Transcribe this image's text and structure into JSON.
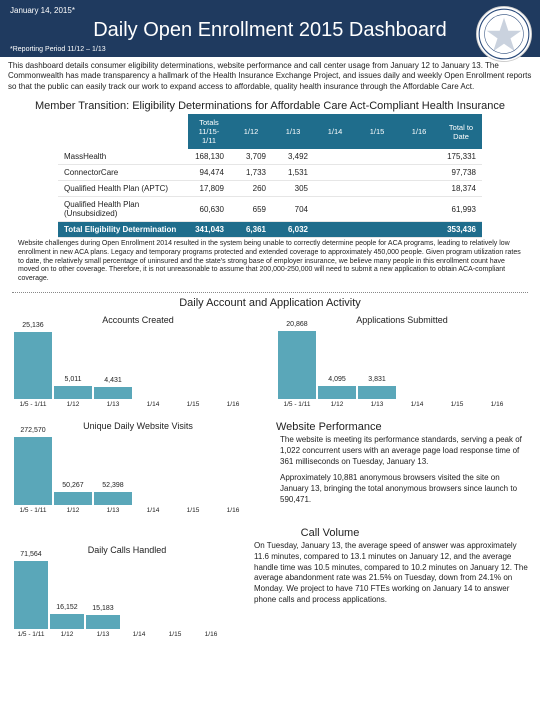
{
  "header": {
    "report_date": "January 14, 2015*",
    "title": "Daily Open Enrollment 2015 Dashboard",
    "period": "*Reporting Period 11/12 – 1/13"
  },
  "intro": "This dashboard details consumer eligibility determinations, website performance and call center usage from January 12 to January 13. The Commonwealth has made transparency a hallmark of the Health Insurance Exchange Project, and issues daily and weekly Open Enrollment reports so that the public can easily track our work to expand access to affordable, quality health insurance through the Affordable Care Act.",
  "table": {
    "title": "Member Transition: Eligibility Determinations for Affordable Care Act-Compliant Health Insurance",
    "headers": [
      "",
      "Totals 11/15- 1/11",
      "1/12",
      "1/13",
      "1/14",
      "1/15",
      "1/16",
      "Total to Date"
    ],
    "rows": [
      {
        "label": "MassHealth",
        "cells": [
          "168,130",
          "3,709",
          "3,492",
          "",
          "",
          "",
          "175,331"
        ]
      },
      {
        "label": "ConnectorCare",
        "cells": [
          "94,474",
          "1,733",
          "1,531",
          "",
          "",
          "",
          "97,738"
        ]
      },
      {
        "label": "Qualified Health Plan (APTC)",
        "cells": [
          "17,809",
          "260",
          "305",
          "",
          "",
          "",
          "18,374"
        ]
      },
      {
        "label": "Qualified Health Plan (Unsubsidized)",
        "cells": [
          "60,630",
          "659",
          "704",
          "",
          "",
          "",
          "61,993"
        ]
      }
    ],
    "total": {
      "label": "Total Eligibility Determination",
      "cells": [
        "341,043",
        "6,361",
        "6,032",
        "",
        "",
        "",
        "353,436"
      ]
    }
  },
  "table_note": "Website challenges during Open Enrollment 2014 resulted in the system being unable to correctly determine people for ACA programs, leading to relatively low enrollment in new ACA plans. Legacy and temporary programs protected and extended coverage to approximately 450,000 people. Given program utilization rates to date, the relatively small percentage of uninsured and the state's strong base of employer insurance, we believe many people in this enrollment count have moved on to other coverage. Therefore, it is not unreasonable to assume that 200,000-250,000 will need to submit a new application to obtain ACA-compliant coverage.",
  "activity_title": "Daily Account and Application Activity",
  "charts": {
    "colors": {
      "bar": "#5aa7b9",
      "bg": "#ffffff"
    },
    "xcats": [
      "1/5 - 1/11",
      "1/12",
      "1/13",
      "1/14",
      "1/15",
      "1/16"
    ],
    "accounts": {
      "title": "Accounts Created",
      "values": [
        25136,
        5011,
        4431,
        null,
        null,
        null
      ],
      "ylim": 27000
    },
    "apps": {
      "title": "Applications Submitted",
      "values": [
        20868,
        4095,
        3831,
        null,
        null,
        null
      ],
      "ylim": 22000
    },
    "visits": {
      "title": "Unique Daily Website Visits",
      "values": [
        272570,
        50267,
        52398,
        null,
        null,
        null
      ],
      "ylim": 290000
    },
    "calls": {
      "title": "Daily Calls Handled",
      "values": [
        71564,
        16152,
        15183,
        null,
        null,
        null
      ],
      "ylim": 76000
    }
  },
  "webperf": {
    "title": "Website Performance",
    "p1": "The website is meeting its performance standards, serving a peak of 1,022 concurrent users with an average page load response time of 361 milliseconds on Tuesday, January 13.",
    "p2": "Approximately 10,881 anonymous browsers visited the site on January 13, bringing the total anonymous browsers since launch to 590,471."
  },
  "callvol": {
    "title": "Call Volume",
    "text": "On Tuesday, January 13, the average speed of answer was approximately 11.6 minutes, compared to 13.1 minutes on January 12, and the average handle time was 10.5 minutes, compared to 10.2 minutes on January 12. The average abandonment rate was 21.5% on Tuesday, down from 24.1% on Monday. We project to have 710 FTEs working on January 14 to answer phone calls and process applications."
  }
}
